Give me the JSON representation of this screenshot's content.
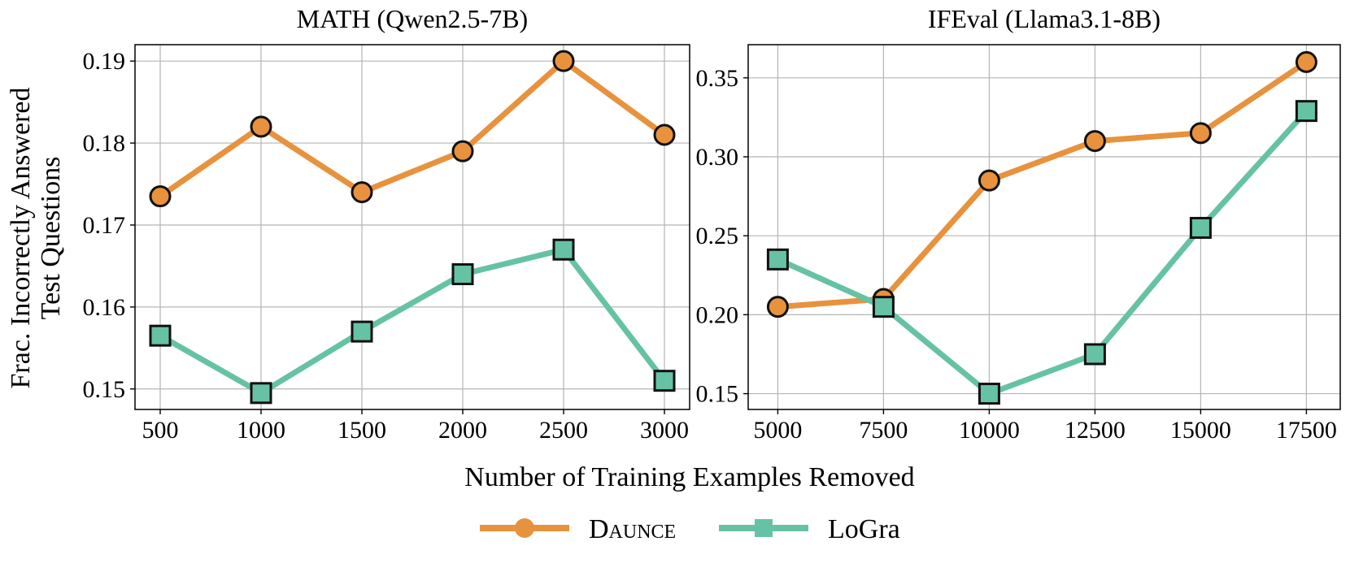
{
  "chart_data": [
    {
      "type": "line",
      "title": "MATH (Qwen2.5-7B)",
      "x": [
        500,
        1000,
        1500,
        2000,
        2500,
        3000
      ],
      "xticks": [
        "500",
        "1000",
        "1500",
        "2000",
        "2500",
        "3000"
      ],
      "xlim": [
        375,
        3125
      ],
      "yticks": [
        "0.15",
        "0.16",
        "0.17",
        "0.18",
        "0.19"
      ],
      "ytick_values": [
        0.15,
        0.16,
        0.17,
        0.18,
        0.19
      ],
      "ylim": [
        0.1475,
        0.192
      ],
      "grid": true,
      "series": [
        {
          "name": "Daunce",
          "color": "#e8923d",
          "marker": "circle",
          "values": [
            0.1735,
            0.182,
            0.174,
            0.179,
            0.19,
            0.181
          ]
        },
        {
          "name": "LoGra",
          "color": "#66c2a5",
          "marker": "square",
          "values": [
            0.1565,
            0.1495,
            0.157,
            0.164,
            0.167,
            0.151
          ]
        }
      ]
    },
    {
      "type": "line",
      "title": "IFEval (Llama3.1-8B)",
      "x": [
        5000,
        7500,
        10000,
        12500,
        15000,
        17500
      ],
      "xticks": [
        "5000",
        "7500",
        "10000",
        "12500",
        "15000",
        "17500"
      ],
      "xlim": [
        4300,
        18300
      ],
      "yticks": [
        "0.15",
        "0.20",
        "0.25",
        "0.30",
        "0.35"
      ],
      "ytick_values": [
        0.15,
        0.2,
        0.25,
        0.3,
        0.35
      ],
      "ylim": [
        0.14,
        0.371
      ],
      "grid": true,
      "series": [
        {
          "name": "Daunce",
          "color": "#e8923d",
          "marker": "circle",
          "values": [
            0.205,
            0.21,
            0.285,
            0.31,
            0.315,
            0.36
          ]
        },
        {
          "name": "LoGra",
          "color": "#66c2a5",
          "marker": "square",
          "values": [
            0.235,
            0.205,
            0.15,
            0.175,
            0.255,
            0.329
          ]
        }
      ]
    }
  ],
  "ylabel_line1": "Frac. Incorrectly Answered",
  "ylabel_line2": "Test Questions",
  "xlabel": "Number of Training Examples Removed",
  "legend": [
    {
      "label": "Daunce",
      "color": "#e8923d",
      "marker": "circle"
    },
    {
      "label": "LoGra",
      "color": "#66c2a5",
      "marker": "square"
    }
  ]
}
